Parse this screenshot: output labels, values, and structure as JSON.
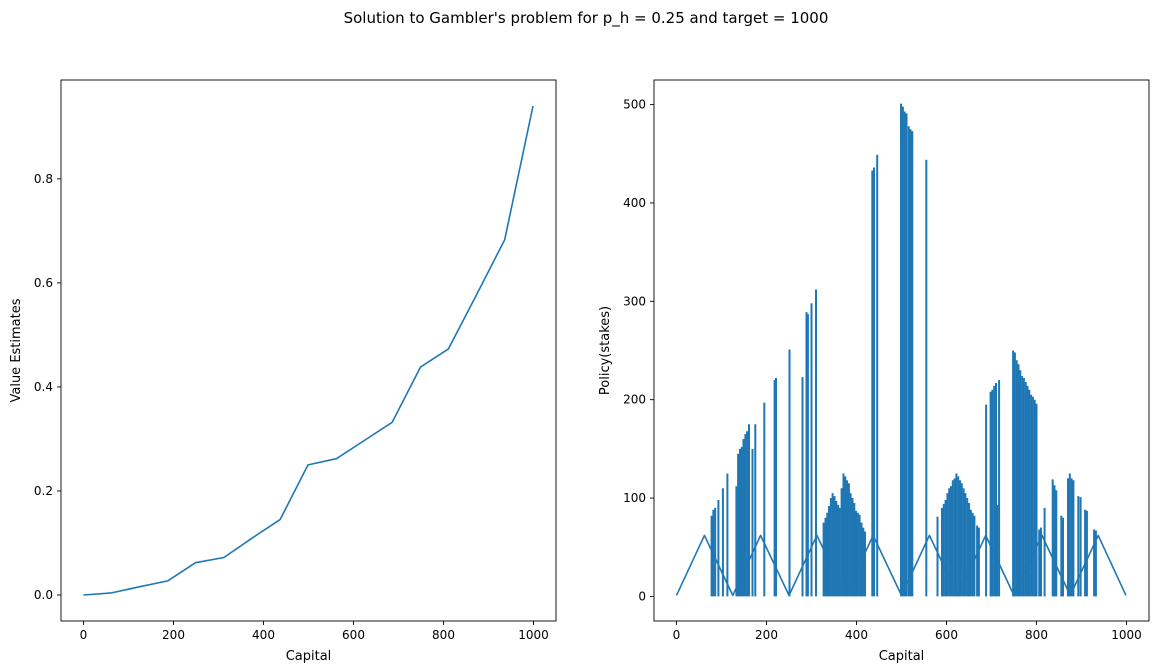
{
  "suptitle": "Solution to Gambler's problem for p_h = 0.25 and target = 1000",
  "chart_data": [
    {
      "type": "line",
      "title": "",
      "xlabel": "Capital",
      "ylabel": "Value Estimates",
      "xlim": [
        -50,
        1050
      ],
      "ylim": [
        -0.05,
        0.99
      ],
      "xticks": [
        0,
        200,
        400,
        600,
        800,
        1000
      ],
      "yticks": [
        0.0,
        0.2,
        0.4,
        0.6,
        0.8
      ],
      "ytick_labels": [
        "0.0",
        "0.2",
        "0.4",
        "0.6",
        "0.8"
      ],
      "color": "#1f77b4",
      "grid": false,
      "x": [
        0,
        62,
        125,
        187,
        249,
        312,
        374,
        437,
        499,
        562,
        624,
        686,
        749,
        811,
        874,
        936,
        999
      ],
      "values": [
        0.0,
        0.004,
        0.016,
        0.027,
        0.062,
        0.072,
        0.109,
        0.145,
        0.25,
        0.262,
        0.297,
        0.332,
        0.438,
        0.473,
        0.578,
        0.683,
        0.94
      ]
    },
    {
      "type": "line",
      "title": "",
      "xlabel": "Capital",
      "ylabel": "Policy(stakes)",
      "xlim": [
        -50,
        1050
      ],
      "ylim": [
        -25,
        525
      ],
      "xticks": [
        0,
        200,
        400,
        600,
        800,
        1000
      ],
      "yticks": [
        0,
        100,
        200,
        300,
        400,
        500
      ],
      "ytick_labels": [
        "0",
        "100",
        "200",
        "300",
        "400",
        "500"
      ],
      "color": "#1f77b4",
      "grid": false,
      "x": [
        0,
        62,
        125,
        187,
        250,
        312,
        375,
        437,
        500,
        562,
        625,
        687,
        750,
        812,
        875,
        937,
        999
      ],
      "values": [
        1,
        62,
        1,
        62,
        1,
        62,
        1,
        62,
        1,
        62,
        1,
        62,
        1,
        62,
        1,
        62,
        1
      ],
      "spikes": [
        [
          78,
          82
        ],
        [
          82,
          88
        ],
        [
          86,
          90
        ],
        [
          93,
          98
        ],
        [
          103,
          110
        ],
        [
          113,
          125
        ],
        [
          133,
          112
        ],
        [
          137,
          145
        ],
        [
          141,
          150
        ],
        [
          145,
          152
        ],
        [
          149,
          160
        ],
        [
          153,
          165
        ],
        [
          157,
          168
        ],
        [
          161,
          175
        ],
        [
          169,
          150
        ],
        [
          175,
          175
        ],
        [
          195,
          197
        ],
        [
          218,
          220
        ],
        [
          221,
          222
        ],
        [
          251,
          251
        ],
        [
          280,
          223
        ],
        [
          289,
          289
        ],
        [
          292,
          287
        ],
        [
          300,
          298
        ],
        [
          310,
          312
        ],
        [
          327,
          75
        ],
        [
          331,
          80
        ],
        [
          335,
          85
        ],
        [
          339,
          92
        ],
        [
          343,
          100
        ],
        [
          347,
          105
        ],
        [
          351,
          102
        ],
        [
          355,
          97
        ],
        [
          359,
          93
        ],
        [
          363,
          90
        ],
        [
          367,
          110
        ],
        [
          371,
          125
        ],
        [
          375,
          122
        ],
        [
          379,
          118
        ],
        [
          383,
          115
        ],
        [
          387,
          105
        ],
        [
          391,
          100
        ],
        [
          395,
          95
        ],
        [
          399,
          87
        ],
        [
          403,
          85
        ],
        [
          407,
          83
        ],
        [
          411,
          75
        ],
        [
          415,
          70
        ],
        [
          419,
          66
        ],
        [
          435,
          433
        ],
        [
          439,
          436
        ],
        [
          446,
          449
        ],
        [
          499,
          501
        ],
        [
          503,
          498
        ],
        [
          507,
          493
        ],
        [
          511,
          491
        ],
        [
          516,
          478
        ],
        [
          520,
          475
        ],
        [
          524,
          473
        ],
        [
          555,
          444
        ],
        [
          580,
          81
        ],
        [
          590,
          90
        ],
        [
          594,
          94
        ],
        [
          598,
          98
        ],
        [
          602,
          105
        ],
        [
          606,
          110
        ],
        [
          610,
          112
        ],
        [
          614,
          118
        ],
        [
          618,
          120
        ],
        [
          622,
          125
        ],
        [
          626,
          122
        ],
        [
          630,
          118
        ],
        [
          634,
          115
        ],
        [
          638,
          110
        ],
        [
          642,
          105
        ],
        [
          646,
          100
        ],
        [
          650,
          95
        ],
        [
          654,
          88
        ],
        [
          658,
          85
        ],
        [
          662,
          82
        ],
        [
          668,
          72
        ],
        [
          672,
          70
        ],
        [
          688,
          195
        ],
        [
          698,
          208
        ],
        [
          702,
          210
        ],
        [
          706,
          214
        ],
        [
          710,
          217
        ],
        [
          713,
          93
        ],
        [
          717,
          220
        ],
        [
          748,
          250
        ],
        [
          752,
          248
        ],
        [
          756,
          240
        ],
        [
          760,
          236
        ],
        [
          764,
          230
        ],
        [
          768,
          224
        ],
        [
          772,
          222
        ],
        [
          776,
          218
        ],
        [
          780,
          214
        ],
        [
          784,
          210
        ],
        [
          788,
          205
        ],
        [
          792,
          203
        ],
        [
          796,
          200
        ],
        [
          800,
          196
        ],
        [
          806,
          68
        ],
        [
          810,
          70
        ],
        [
          818,
          90
        ],
        [
          836,
          119
        ],
        [
          840,
          113
        ],
        [
          844,
          108
        ],
        [
          855,
          82
        ],
        [
          859,
          80
        ],
        [
          870,
          120
        ],
        [
          874,
          125
        ],
        [
          878,
          120
        ],
        [
          882,
          118
        ],
        [
          893,
          102
        ],
        [
          898,
          101
        ],
        [
          908,
          88
        ],
        [
          912,
          87
        ],
        [
          928,
          68
        ],
        [
          932,
          67
        ]
      ]
    }
  ]
}
